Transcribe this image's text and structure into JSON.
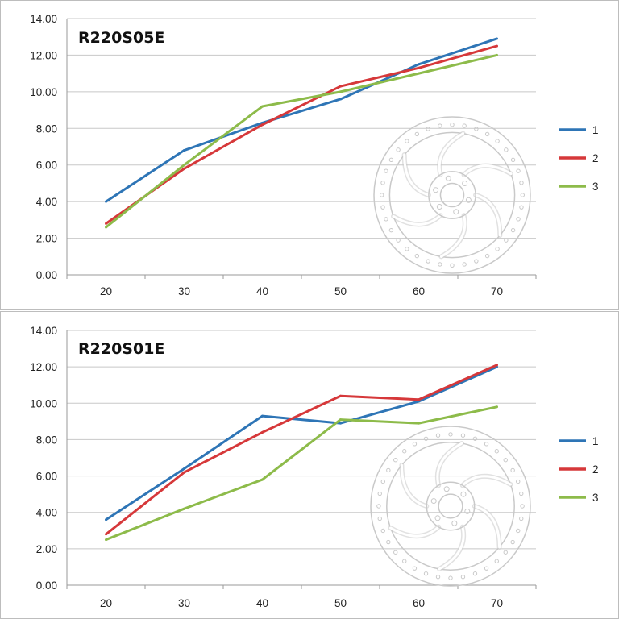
{
  "colors": {
    "series_1": "#2e75b6",
    "series_2": "#d6383a",
    "series_3": "#8dbb4a",
    "grid": "#c8c8c8",
    "rotor": "#c9c9c9"
  },
  "chart_data": [
    {
      "type": "line",
      "title": "R220S05E",
      "x": [
        20,
        30,
        40,
        50,
        60,
        70
      ],
      "x_tick_labels": [
        "20",
        "30",
        "40",
        "50",
        "60",
        "70"
      ],
      "y_tick_labels": [
        "0.00",
        "2.00",
        "4.00",
        "6.00",
        "8.00",
        "10.00",
        "12.00",
        "14.00"
      ],
      "ylim": [
        0,
        14
      ],
      "grid": true,
      "legend_position": "right",
      "image": "disc-rotor-icon",
      "series": [
        {
          "name": "1",
          "values": [
            4.0,
            6.8,
            8.3,
            9.6,
            11.5,
            12.9
          ]
        },
        {
          "name": "2",
          "values": [
            2.8,
            5.8,
            8.2,
            10.3,
            11.3,
            12.5
          ]
        },
        {
          "name": "3",
          "values": [
            2.6,
            6.0,
            9.2,
            10.0,
            11.0,
            12.0
          ]
        }
      ]
    },
    {
      "type": "line",
      "title": "R220S01E",
      "x": [
        20,
        30,
        40,
        50,
        60,
        70
      ],
      "x_tick_labels": [
        "20",
        "30",
        "40",
        "50",
        "60",
        "70"
      ],
      "y_tick_labels": [
        "0.00",
        "2.00",
        "4.00",
        "6.00",
        "8.00",
        "10.00",
        "12.00",
        "14.00"
      ],
      "ylim": [
        0,
        14
      ],
      "grid": true,
      "legend_position": "right",
      "image": "disc-rotor-icon",
      "series": [
        {
          "name": "1",
          "values": [
            3.6,
            6.4,
            9.3,
            8.9,
            10.1,
            12.0
          ]
        },
        {
          "name": "2",
          "values": [
            2.8,
            6.2,
            8.4,
            10.4,
            10.2,
            12.1
          ]
        },
        {
          "name": "3",
          "values": [
            2.5,
            4.2,
            5.8,
            9.1,
            8.9,
            9.8
          ]
        }
      ]
    }
  ]
}
